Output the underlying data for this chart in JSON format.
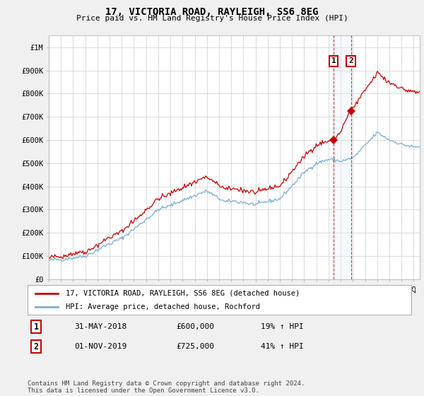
{
  "title": "17, VICTORIA ROAD, RAYLEIGH, SS6 8EG",
  "subtitle": "Price paid vs. HM Land Registry's House Price Index (HPI)",
  "ylabel_ticks": [
    "£0",
    "£100K",
    "£200K",
    "£300K",
    "£400K",
    "£500K",
    "£600K",
    "£700K",
    "£800K",
    "£900K",
    "£1M"
  ],
  "ytick_values": [
    0,
    100000,
    200000,
    300000,
    400000,
    500000,
    600000,
    700000,
    800000,
    900000,
    1000000
  ],
  "ylim": [
    0,
    1050000
  ],
  "xlim_start": 1995.0,
  "xlim_end": 2025.5,
  "hpi_color": "#7aadd4",
  "price_color": "#cc0000",
  "dashed_line_color": "#cc0000",
  "shade_color": "#ddeeff",
  "transaction1": {
    "date_num": 2018.42,
    "price": 600000,
    "label": "1"
  },
  "transaction2": {
    "date_num": 2019.84,
    "price": 725000,
    "label": "2"
  },
  "legend_label1": "17, VICTORIA ROAD, RAYLEIGH, SS6 8EG (detached house)",
  "legend_label2": "HPI: Average price, detached house, Rochford",
  "table_row1": [
    "1",
    "31-MAY-2018",
    "£600,000",
    "19% ↑ HPI"
  ],
  "table_row2": [
    "2",
    "01-NOV-2019",
    "£725,000",
    "41% ↑ HPI"
  ],
  "footer": "Contains HM Land Registry data © Crown copyright and database right 2024.\nThis data is licensed under the Open Government Licence v3.0.",
  "background_color": "#f0f0f0",
  "plot_bg_color": "#ffffff",
  "grid_color": "#cccccc"
}
